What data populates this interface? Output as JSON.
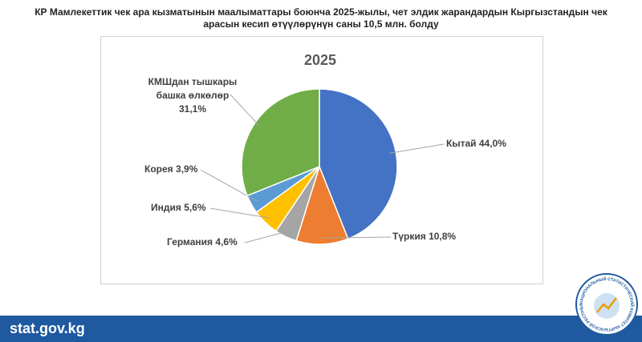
{
  "header": {
    "title": "КР Мамлекеттик  чек ара кызматынын маалыматтары боюнча 2025-жылы, чет элдик жарандардын Кыргызстандын чек арасын кесип өтүүлөрүнүн саны 10,5 млн. болду"
  },
  "chart_data": {
    "type": "pie",
    "title": "2025",
    "categories": [
      "Кытай",
      "Түркия",
      "Германия",
      "Индия",
      "Корея",
      "КМШдан тышкары башка өлкөлөр"
    ],
    "values": [
      44.0,
      10.8,
      4.6,
      5.6,
      3.9,
      31.1
    ],
    "value_labels": [
      "44,0%",
      "10,8%",
      "4,6%",
      "5,6%",
      "3,9%",
      "31,1%"
    ],
    "colors": [
      "#4472c4",
      "#ed7d31",
      "#a5a5a5",
      "#ffc000",
      "#5b9bd5",
      "#70ad47"
    ]
  },
  "footer": {
    "site": "stat.gov.kg",
    "logo_text": "НАЦИОНАЛЬНЫЙ СТАТИСТИЧЕСКИЙ КОМИТЕТ КЫРГЫЗСКОЙ РЕСПУБЛИКИ"
  }
}
